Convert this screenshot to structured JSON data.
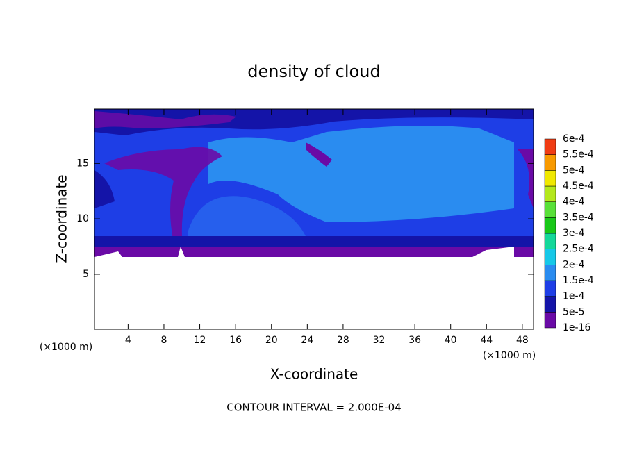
{
  "chart_data": {
    "type": "contour",
    "title": "density of cloud",
    "x_label": "X-coordinate",
    "y_label": "Z-coordinate",
    "x_unit_label": "(×1000 m)",
    "y_unit_label": "(×1000 m)",
    "footer": "CONTOUR INTERVAL = 2.000E-04",
    "xlim": [
      0.25,
      49.25
    ],
    "ylim": [
      0.05,
      19.9
    ],
    "xticks": [
      4,
      8,
      12,
      16,
      20,
      24,
      28,
      32,
      36,
      40,
      44,
      48
    ],
    "yticks": [
      5,
      10,
      15
    ],
    "colorbar": {
      "levels": [
        1e-16,
        {
          "value": 5e-05,
          "label": "5e-5"
        },
        {
          "value": 0.0001,
          "label": "1e-4"
        },
        {
          "value": 0.00015,
          "label": "1.5e-4"
        },
        {
          "value": 0.0002,
          "label": "2e-4"
        },
        {
          "value": 0.00025,
          "label": "2.5e-4"
        },
        {
          "value": 0.0003,
          "label": "3e-4"
        },
        {
          "value": 0.00035,
          "label": "3.5e-4"
        },
        {
          "value": 0.0004,
          "label": "4e-4"
        },
        {
          "value": 0.00045,
          "label": "4.5e-4"
        },
        {
          "value": 0.0005,
          "label": "5e-4"
        },
        {
          "value": 0.00055,
          "label": "5.5e-4"
        },
        {
          "value": 0.0006,
          "label": "6e-4"
        }
      ],
      "colors": [
        "#6a0aa6",
        "#1414a8",
        "#1e3ee6",
        "#2a8cf0",
        "#16c8e8",
        "#14d89a",
        "#18c818",
        "#58e038",
        "#b4e81c",
        "#f0e800",
        "#f89a00",
        "#f03c14"
      ]
    }
  }
}
